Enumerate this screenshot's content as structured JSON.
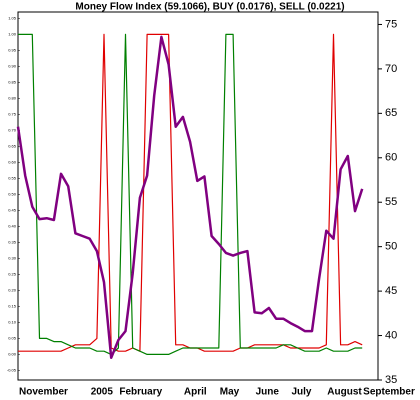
{
  "chart_data": {
    "type": "line",
    "title": "Money Flow Index (59.1066), BUY (0.0176), SELL (0.0221)",
    "categories": [
      "November",
      null,
      null,
      null,
      null,
      null,
      null,
      null,
      null,
      null,
      "2005",
      null,
      null,
      null,
      "February",
      null,
      null,
      null,
      null,
      null,
      null,
      null,
      null,
      "April",
      null,
      null,
      null,
      null,
      "May",
      null,
      null,
      null,
      null,
      "June",
      null,
      null,
      null,
      null,
      "July",
      null,
      null,
      null,
      null,
      "August",
      null,
      null,
      null,
      null,
      "September"
    ],
    "series": [
      {
        "color": "#e00000",
        "values": [
          0.01,
          0.01,
          0.01,
          0.01,
          0.01,
          0.01,
          0.01,
          0.02,
          0.03,
          0.03,
          0.03,
          0.05,
          1.0,
          0.02,
          0.01,
          0.01,
          0.02,
          0.01,
          1.0,
          1.0,
          1.0,
          1.0,
          0.03,
          0.03,
          0.02,
          0.02,
          0.01,
          0.01,
          0.01,
          0.01,
          0.01,
          0.02,
          0.02,
          0.03,
          0.03,
          0.03,
          0.03,
          0.03,
          0.02,
          0.02,
          0.02,
          0.02,
          0.02,
          0.03,
          1.0,
          0.03,
          0.03,
          0.04,
          0.03
        ]
      },
      {
        "color": "#008000",
        "values": [
          1.0,
          1.0,
          1.0,
          0.05,
          0.05,
          0.04,
          0.04,
          0.03,
          0.02,
          0.02,
          0.02,
          0.01,
          0.01,
          0.0,
          0.02,
          1.0,
          0.02,
          0.01,
          0.0,
          0.0,
          0.0,
          0.0,
          0.01,
          0.02,
          0.02,
          0.02,
          0.02,
          0.02,
          0.02,
          1.0,
          1.0,
          0.02,
          0.02,
          0.02,
          0.02,
          0.02,
          0.02,
          0.03,
          0.03,
          0.02,
          0.01,
          0.01,
          0.01,
          0.02,
          0.01,
          0.01,
          0.01,
          0.02,
          0.02
        ]
      },
      {
        "color": "#800080",
        "axis": "y2",
        "values": [
          63.5,
          58,
          54.5,
          53.1,
          53.2,
          53.0,
          58.2,
          56.8,
          51.5,
          51.2,
          50.9,
          49.5,
          46,
          37.5,
          39.5,
          40.5,
          47,
          55.5,
          58,
          67,
          73.6,
          70.5,
          63.5,
          64.6,
          61.8,
          57.4,
          57.9,
          51.2,
          50.3,
          49.3,
          49,
          49.3,
          49.5,
          42.6,
          42.5,
          43.1,
          41.9,
          41.9,
          41.4,
          41.0,
          40.5,
          40.5,
          46.4,
          51.8,
          50.9,
          58.7,
          60.2,
          54.0,
          56.5
        ]
      }
    ],
    "ylim": [
      -0.08,
      1.07
    ],
    "yticks": [
      -0.05,
      {
        "value": 0,
        "label": "0.00"
      },
      0.05,
      {
        "value": 0.1,
        "label": "0.10"
      },
      0.15,
      {
        "value": 0.2,
        "label": "0.20"
      },
      0.25,
      {
        "value": 0.3,
        "label": "0.30"
      },
      0.35,
      {
        "value": 0.4,
        "label": "0.40"
      },
      0.45,
      {
        "value": 0.5,
        "label": "0.50"
      },
      0.55,
      {
        "value": 0.6,
        "label": "0.60"
      },
      0.65,
      {
        "value": 0.7,
        "label": "0.70"
      },
      0.75,
      {
        "value": 0.8,
        "label": "0.80"
      },
      0.85,
      {
        "value": 0.9,
        "label": "0.90"
      },
      0.95,
      {
        "value": 1,
        "label": "1.00"
      },
      1.05
    ],
    "y2lim": [
      35,
      76.4
    ],
    "y2ticks": [
      35,
      40,
      45,
      50,
      55,
      60,
      65,
      70,
      75
    ]
  }
}
